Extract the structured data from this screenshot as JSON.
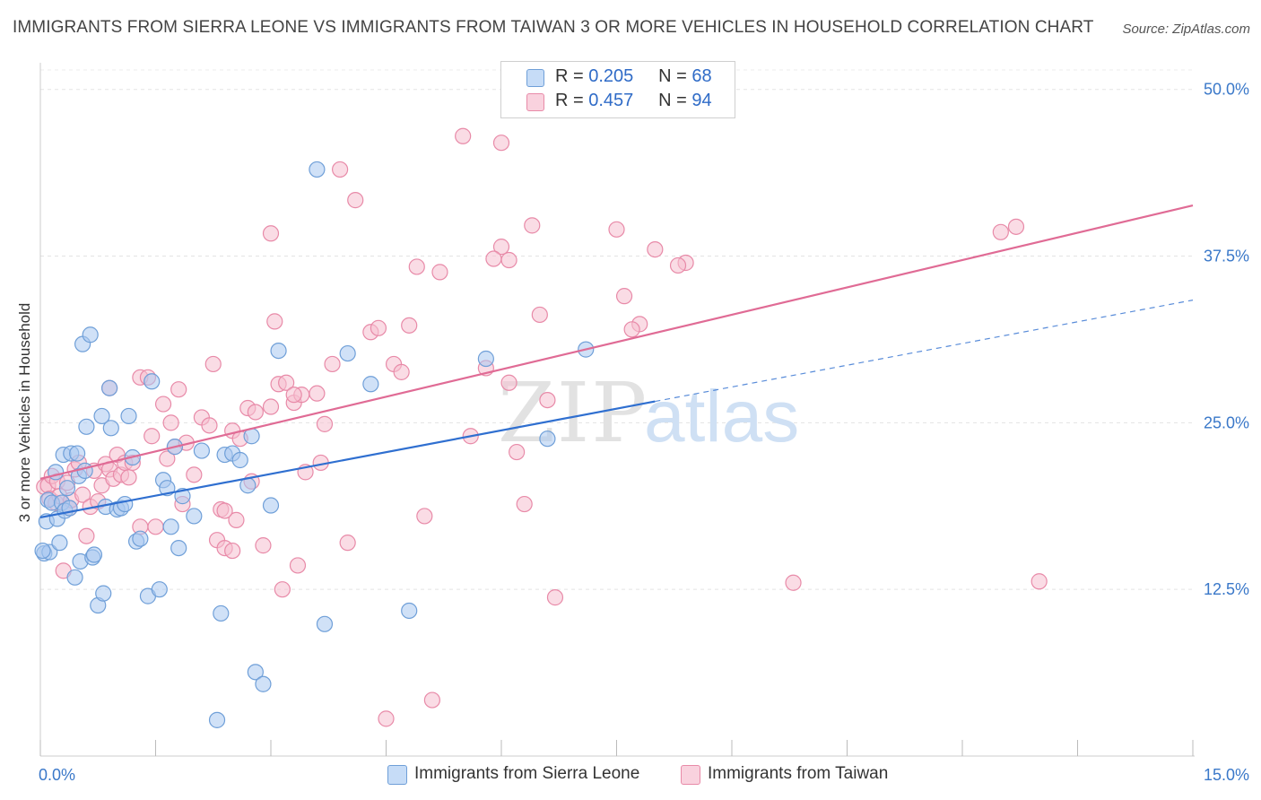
{
  "title": "IMMIGRANTS FROM SIERRA LEONE VS IMMIGRANTS FROM TAIWAN 3 OR MORE VEHICLES IN HOUSEHOLD CORRELATION CHART",
  "source": "Source: ZipAtlas.com",
  "legend": {
    "r_label": "R =",
    "n_label": "N =",
    "series": [
      {
        "r": "0.205",
        "n": "68"
      },
      {
        "r": "0.457",
        "n": "94"
      }
    ]
  },
  "watermark": {
    "zip": "ZIP",
    "atlas": "atlas"
  },
  "colors": {
    "sierra_fill": "#a9c8f0",
    "sierra_stroke": "#6f9fd8",
    "sierra_line": "#2f6fd0",
    "taiwan_fill": "#f6bfd0",
    "taiwan_stroke": "#e88aa8",
    "taiwan_line": "#e06b95",
    "tick_label": "#3a78c9"
  },
  "chart_data": {
    "type": "scatter",
    "xlabel": "",
    "ylabel": "3 or more Vehicles in Household",
    "xlim": [
      0,
      15
    ],
    "ylim": [
      0,
      52
    ],
    "x_tick_labels": [
      "0.0%",
      "15.0%"
    ],
    "y_ticks": [
      12.5,
      25.0,
      37.5,
      50.0
    ],
    "y_tick_labels": [
      "12.5%",
      "25.0%",
      "37.5%",
      "50.0%"
    ],
    "grid": true,
    "legend_position": "top-center",
    "series": [
      {
        "name": "Immigrants from Sierra Leone",
        "trend": {
          "x0": 0,
          "y0": 17.9,
          "x1": 8.0,
          "y1": 26.6,
          "dash_x1": 15.0,
          "dash_y1": 34.2
        },
        "points": [
          [
            0.05,
            15.2
          ],
          [
            0.08,
            17.6
          ],
          [
            0.1,
            19.2
          ],
          [
            0.12,
            15.3
          ],
          [
            0.15,
            19.0
          ],
          [
            0.2,
            21.3
          ],
          [
            0.22,
            17.8
          ],
          [
            0.25,
            16.0
          ],
          [
            0.28,
            19.0
          ],
          [
            0.3,
            22.6
          ],
          [
            0.32,
            18.4
          ],
          [
            0.35,
            20.1
          ],
          [
            0.38,
            18.6
          ],
          [
            0.4,
            22.7
          ],
          [
            0.45,
            13.4
          ],
          [
            0.48,
            22.7
          ],
          [
            0.5,
            21.0
          ],
          [
            0.52,
            14.6
          ],
          [
            0.55,
            30.9
          ],
          [
            0.58,
            21.4
          ],
          [
            0.6,
            24.7
          ],
          [
            0.65,
            31.6
          ],
          [
            0.68,
            14.9
          ],
          [
            0.7,
            15.1
          ],
          [
            0.75,
            11.3
          ],
          [
            0.8,
            25.5
          ],
          [
            0.82,
            12.2
          ],
          [
            0.85,
            18.7
          ],
          [
            0.9,
            27.6
          ],
          [
            0.92,
            24.6
          ],
          [
            1.0,
            18.5
          ],
          [
            1.05,
            18.6
          ],
          [
            1.1,
            18.9
          ],
          [
            1.15,
            25.5
          ],
          [
            1.2,
            22.4
          ],
          [
            1.25,
            16.1
          ],
          [
            1.3,
            16.3
          ],
          [
            1.4,
            12.0
          ],
          [
            1.45,
            28.1
          ],
          [
            1.55,
            12.5
          ],
          [
            1.6,
            20.7
          ],
          [
            1.65,
            20.1
          ],
          [
            1.7,
            17.2
          ],
          [
            1.75,
            23.2
          ],
          [
            1.8,
            15.6
          ],
          [
            1.85,
            19.5
          ],
          [
            2.0,
            18.0
          ],
          [
            2.1,
            22.9
          ],
          [
            2.3,
            2.7
          ],
          [
            2.35,
            10.7
          ],
          [
            2.4,
            22.6
          ],
          [
            2.5,
            22.7
          ],
          [
            2.6,
            22.2
          ],
          [
            2.7,
            20.3
          ],
          [
            2.75,
            24.0
          ],
          [
            2.8,
            6.3
          ],
          [
            2.9,
            5.4
          ],
          [
            3.0,
            18.8
          ],
          [
            3.1,
            30.4
          ],
          [
            3.6,
            44.0
          ],
          [
            3.7,
            9.9
          ],
          [
            4.0,
            30.2
          ],
          [
            4.3,
            27.9
          ],
          [
            4.8,
            10.9
          ],
          [
            5.8,
            29.8
          ],
          [
            6.6,
            23.8
          ],
          [
            7.1,
            30.5
          ],
          [
            0.03,
            15.4
          ]
        ]
      },
      {
        "name": "Immigrants from Taiwan",
        "trend": {
          "x0": 0,
          "y0": 20.8,
          "x1": 15.0,
          "y1": 41.3
        },
        "points": [
          [
            0.05,
            20.2
          ],
          [
            0.1,
            20.3
          ],
          [
            0.12,
            19.3
          ],
          [
            0.15,
            21.0
          ],
          [
            0.2,
            19.0
          ],
          [
            0.22,
            20.6
          ],
          [
            0.25,
            19.5
          ],
          [
            0.3,
            13.9
          ],
          [
            0.35,
            20.5
          ],
          [
            0.38,
            18.6
          ],
          [
            0.4,
            19.2
          ],
          [
            0.45,
            21.5
          ],
          [
            0.5,
            22.0
          ],
          [
            0.55,
            19.6
          ],
          [
            0.6,
            16.5
          ],
          [
            0.65,
            18.7
          ],
          [
            0.7,
            21.4
          ],
          [
            0.75,
            19.1
          ],
          [
            0.8,
            20.3
          ],
          [
            0.85,
            21.9
          ],
          [
            0.9,
            21.5
          ],
          [
            0.95,
            20.8
          ],
          [
            1.0,
            22.6
          ],
          [
            1.05,
            21.1
          ],
          [
            1.1,
            22.0
          ],
          [
            1.15,
            20.9
          ],
          [
            1.2,
            22.0
          ],
          [
            1.3,
            28.4
          ],
          [
            1.4,
            28.4
          ],
          [
            1.45,
            24.0
          ],
          [
            1.5,
            17.2
          ],
          [
            1.6,
            26.4
          ],
          [
            1.65,
            22.3
          ],
          [
            1.7,
            25.0
          ],
          [
            1.75,
            23.2
          ],
          [
            1.8,
            27.5
          ],
          [
            1.85,
            18.9
          ],
          [
            1.9,
            23.5
          ],
          [
            2.0,
            21.1
          ],
          [
            2.1,
            25.4
          ],
          [
            2.2,
            24.8
          ],
          [
            2.25,
            29.4
          ],
          [
            2.3,
            16.2
          ],
          [
            2.35,
            18.5
          ],
          [
            2.4,
            15.6
          ],
          [
            2.5,
            24.4
          ],
          [
            2.55,
            17.7
          ],
          [
            2.6,
            23.8
          ],
          [
            2.7,
            26.1
          ],
          [
            2.75,
            20.6
          ],
          [
            2.8,
            25.8
          ],
          [
            2.9,
            15.8
          ],
          [
            3.0,
            39.2
          ],
          [
            3.05,
            32.6
          ],
          [
            3.1,
            27.9
          ],
          [
            3.15,
            12.5
          ],
          [
            3.2,
            28.0
          ],
          [
            3.3,
            26.5
          ],
          [
            3.35,
            14.3
          ],
          [
            3.4,
            27.1
          ],
          [
            3.45,
            21.3
          ],
          [
            3.6,
            27.2
          ],
          [
            3.65,
            22.0
          ],
          [
            3.7,
            24.9
          ],
          [
            3.8,
            29.4
          ],
          [
            3.9,
            44.0
          ],
          [
            4.0,
            16.0
          ],
          [
            4.1,
            41.7
          ],
          [
            4.3,
            31.8
          ],
          [
            4.4,
            32.1
          ],
          [
            4.5,
            2.8
          ],
          [
            4.6,
            29.4
          ],
          [
            4.7,
            28.8
          ],
          [
            4.8,
            32.3
          ],
          [
            4.9,
            36.7
          ],
          [
            5.0,
            18.0
          ],
          [
            5.1,
            4.2
          ],
          [
            5.2,
            36.3
          ],
          [
            5.5,
            46.5
          ],
          [
            5.6,
            24.0
          ],
          [
            5.8,
            29.1
          ],
          [
            6.0,
            46.0
          ],
          [
            6.1,
            37.2
          ],
          [
            6.2,
            22.8
          ],
          [
            6.3,
            18.9
          ],
          [
            6.4,
            39.8
          ],
          [
            6.5,
            33.1
          ],
          [
            6.6,
            26.7
          ],
          [
            6.7,
            11.9
          ],
          [
            7.6,
            34.5
          ],
          [
            7.8,
            32.4
          ],
          [
            8.0,
            38.0
          ],
          [
            8.4,
            37.0
          ],
          [
            9.8,
            13.0
          ]
        ]
      }
    ],
    "extra_points_taiwan": [
      [
        1.3,
        17.2
      ],
      [
        2.5,
        15.4
      ],
      [
        3.3,
        27.1
      ],
      [
        6.0,
        38.2
      ],
      [
        7.5,
        39.5
      ],
      [
        7.7,
        32.0
      ],
      [
        8.3,
        36.8
      ],
      [
        12.5,
        39.3
      ],
      [
        12.7,
        39.7
      ],
      [
        13.0,
        13.1
      ],
      [
        6.1,
        28.0
      ],
      [
        5.9,
        37.3
      ],
      [
        0.9,
        27.6
      ],
      [
        2.4,
        18.4
      ],
      [
        3.0,
        26.2
      ]
    ]
  },
  "bottom_legend": [
    "Immigrants from Sierra Leone",
    "Immigrants from Taiwan"
  ]
}
